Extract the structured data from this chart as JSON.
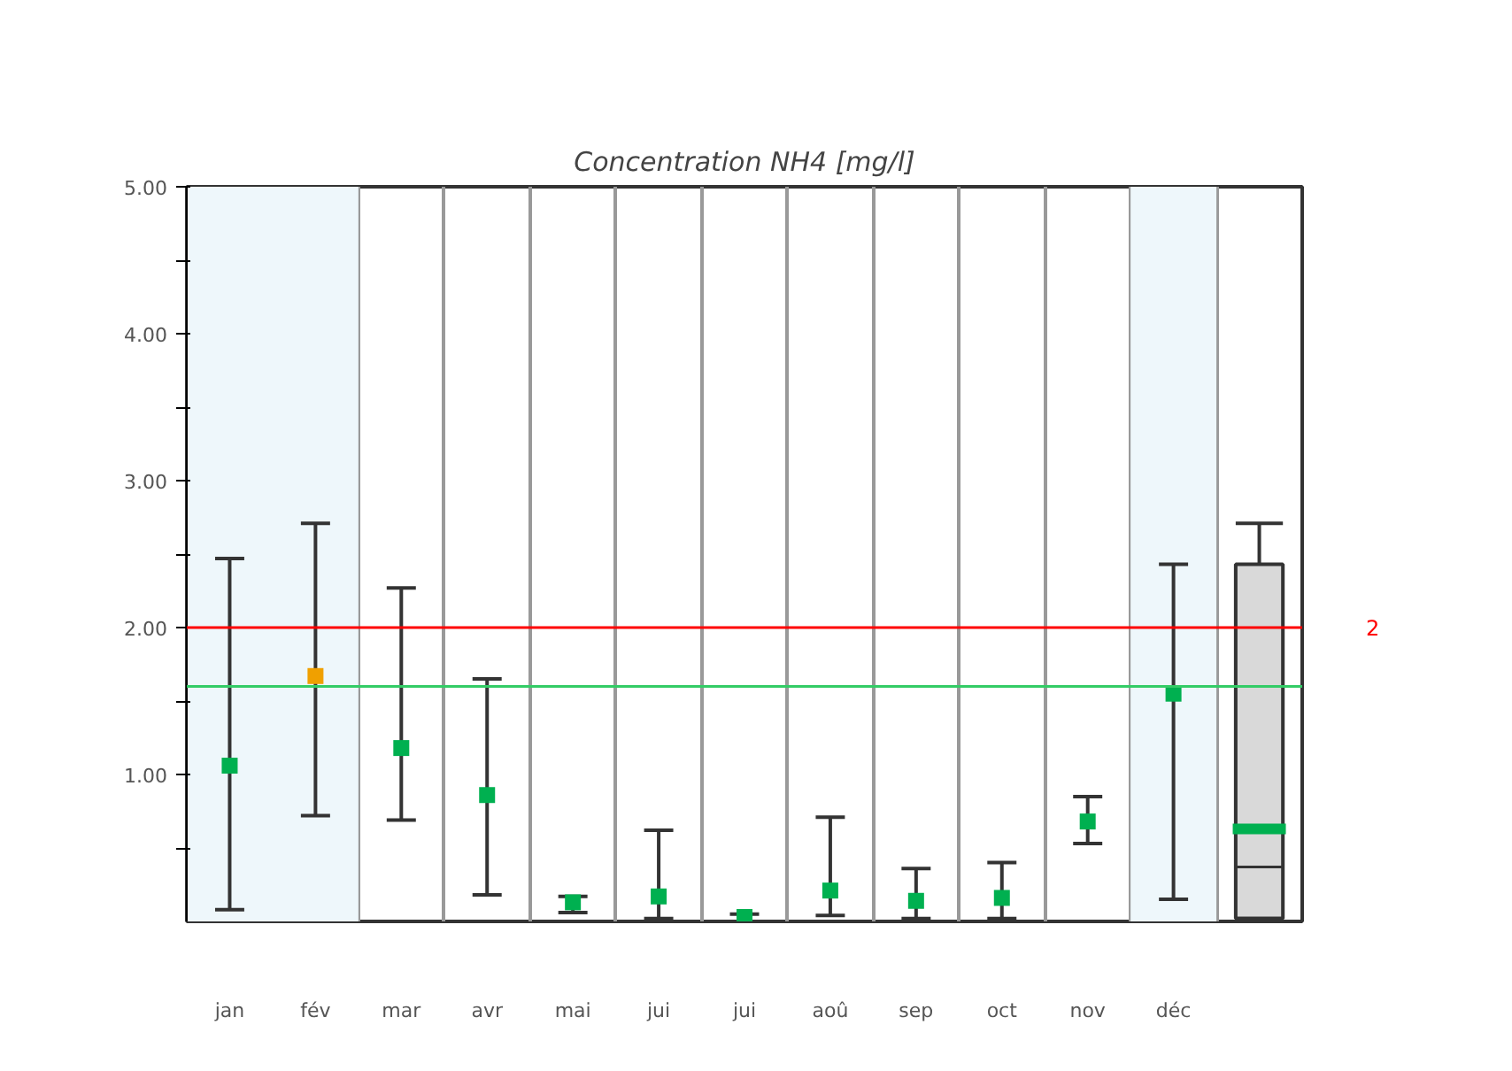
{
  "chart_data": {
    "type": "scatter",
    "title": "Concentration NH4 [mg/l]",
    "categories": [
      "jan",
      "fév",
      "mar",
      "avr",
      "mai",
      "jui",
      "jui",
      "aoû",
      "sep",
      "oct",
      "nov",
      "déc",
      null
    ],
    "series": [
      {
        "type": "scatter",
        "values": [
          1.06,
          1.67,
          1.18,
          0.86,
          0.13,
          0.17,
          0.03,
          0.21,
          0.14,
          0.16,
          0.68,
          1.55,
          null
        ],
        "colors": [
          "#00b050",
          "#f0a000",
          "#00b050",
          "#00b050",
          "#00b050",
          "#00b050",
          "#00b050",
          "#00b050",
          "#00b050",
          "#00b050",
          "#00b050",
          "#00b050",
          "#00b050"
        ],
        "errors": [
          [
            0.08,
            2.47
          ],
          [
            0.72,
            2.71
          ],
          [
            0.69,
            2.27
          ],
          [
            0.18,
            1.65
          ],
          [
            0.06,
            0.17
          ],
          [
            0.02,
            0.62
          ],
          [
            0.0,
            0.05
          ],
          [
            0.04,
            0.71
          ],
          [
            0.02,
            0.36
          ],
          [
            0.02,
            0.4
          ],
          [
            0.53,
            0.85
          ],
          [
            0.15,
            2.43
          ],
          null
        ]
      },
      {
        "type": "box",
        "color": "#d9d9d9",
        "boxes": [
          null,
          null,
          null,
          null,
          null,
          null,
          null,
          null,
          null,
          null,
          null,
          null,
          {
            "low": 0.02,
            "q1": 0.02,
            "median": 0.37,
            "q3": 2.43,
            "high": 2.71,
            "mean": 0.63
          }
        ]
      }
    ],
    "ylim": [
      0,
      5
    ],
    "yticks": [
      {
        "value": 0.5,
        "label": null
      },
      {
        "value": 1,
        "label": "1.00"
      },
      {
        "value": 1.5,
        "label": null
      },
      {
        "value": 2,
        "label": "2.00"
      },
      {
        "value": 2.5,
        "label": null
      },
      {
        "value": 3,
        "label": "3.00"
      },
      {
        "value": 3.5,
        "label": null
      },
      {
        "value": 4,
        "label": "4.00"
      },
      {
        "value": 4.5,
        "label": null
      },
      {
        "value": 5,
        "label": "5.00"
      }
    ],
    "ref_lines": [
      {
        "axis": "y",
        "value": 2,
        "label": "2",
        "color": "#ff0000"
      },
      {
        "axis": "y",
        "value": 1.6,
        "label": null,
        "color": "#33cc66"
      }
    ],
    "bands": [
      {
        "axis": "x",
        "from": "jan",
        "to": "fév",
        "label": null,
        "color": "#eef7fb"
      },
      {
        "axis": "x",
        "from": "déc",
        "to": "déc",
        "label": null,
        "color": "#eef7fb"
      }
    ],
    "grid": "x",
    "marker": "square"
  }
}
